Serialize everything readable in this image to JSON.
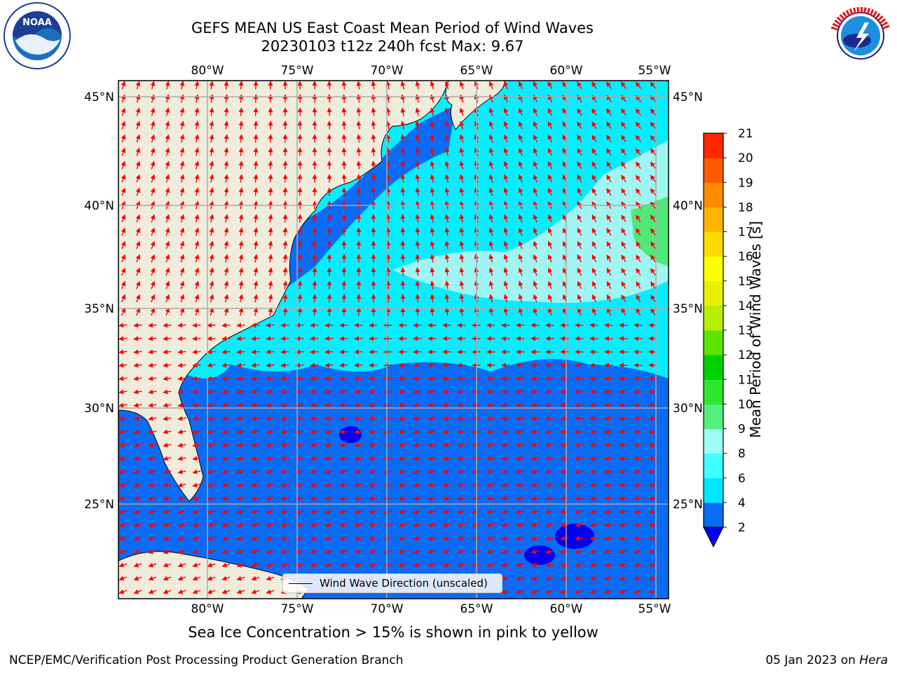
{
  "title_line1": "GEFS MEAN US East Coast Mean Period of Wind Waves",
  "title_line2": "20230103 t12z 240h fcst   Max: 9.67",
  "lon_labels": [
    "80°W",
    "75°W",
    "70°W",
    "65°W",
    "60°W",
    "55°W"
  ],
  "lat_labels": [
    "45°N",
    "40°N",
    "35°N",
    "30°N",
    "25°N"
  ],
  "legend_label": "Wind Wave Direction (unscaled)",
  "colorbar": {
    "label": "Mean Period of Wind Waves [s]",
    "ticks": [
      "2",
      "4",
      "6",
      "8",
      "9",
      "10",
      "11",
      "12",
      "13",
      "14",
      "15",
      "16",
      "17",
      "18",
      "19",
      "20",
      "21"
    ],
    "colors": [
      "#0a6cf5",
      "#00e5ff",
      "#40ffff",
      "#a0fff5",
      "#50f07a",
      "#2ee62e",
      "#00d200",
      "#5ae600",
      "#b4f000",
      "#e6f000",
      "#ffff00",
      "#ffdc00",
      "#ffb400",
      "#ff8c00",
      "#ff5a00",
      "#ff2800",
      "#ff0000"
    ],
    "under_color": "#0000ee"
  },
  "bottom_note": "Sea Ice Concentration > 15% is shown in pink to yellow",
  "footer_left": "NCEP/EMC/Verification Post Processing Product Generation Branch",
  "footer_date": "05 Jan 2023 on ",
  "footer_host": "Hera",
  "colors": {
    "land": "#efecdc",
    "arrow": "#ff0000",
    "grid": "#aaaaaa"
  }
}
